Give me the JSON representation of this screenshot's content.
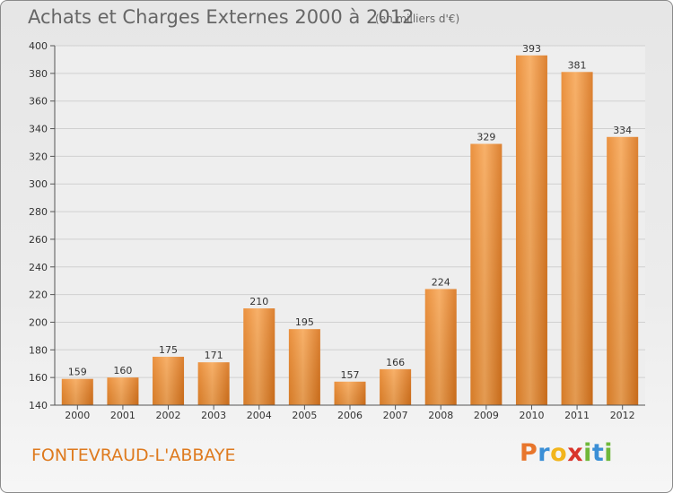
{
  "title": "Achats et Charges Externes 2000 à 2012",
  "unit_note": "(en milliers d'€)",
  "town": "FONTEVRAUD-L'ABBAYE",
  "logo": {
    "letters": [
      "P",
      "r",
      "o",
      "x",
      "i",
      "t",
      "i"
    ],
    "colors": [
      "#e8762c",
      "#3b8fd6",
      "#f2b51c",
      "#d9342b",
      "#6fb83a",
      "#3b8fd6",
      "#6fb83a"
    ]
  },
  "colors": {
    "bar_light": "#f7a85a",
    "bar_dark": "#e07a1f",
    "town": "#de7a1e"
  },
  "chart_data": {
    "type": "bar",
    "title": "Achats et Charges Externes 2000 à 2012",
    "categories": [
      "2000",
      "2001",
      "2002",
      "2003",
      "2004",
      "2005",
      "2006",
      "2007",
      "2008",
      "2009",
      "2010",
      "2011",
      "2012"
    ],
    "values": [
      159,
      160,
      175,
      171,
      210,
      195,
      157,
      166,
      224,
      329,
      393,
      381,
      334
    ],
    "ylim": [
      140,
      400
    ],
    "yticks": [
      140,
      160,
      180,
      200,
      220,
      240,
      260,
      280,
      300,
      320,
      340,
      360,
      380,
      400
    ],
    "grid": true,
    "xlabel": "",
    "ylabel": ""
  }
}
